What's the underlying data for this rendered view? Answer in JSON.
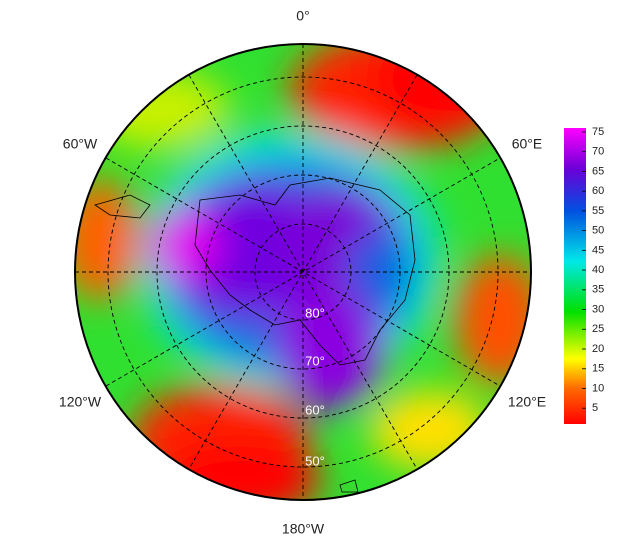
{
  "map": {
    "lon_labels": [
      "0°",
      "60°E",
      "120°E",
      "180°W",
      "120°W",
      "60°W"
    ],
    "lat_labels": [
      "80°",
      "70°",
      "60°",
      "50°"
    ],
    "colorbar": {
      "ticks": [
        5,
        10,
        15,
        20,
        25,
        30,
        35,
        40,
        45,
        50,
        55,
        60,
        65,
        70,
        75
      ],
      "lim": [
        1,
        76
      ]
    }
  }
}
